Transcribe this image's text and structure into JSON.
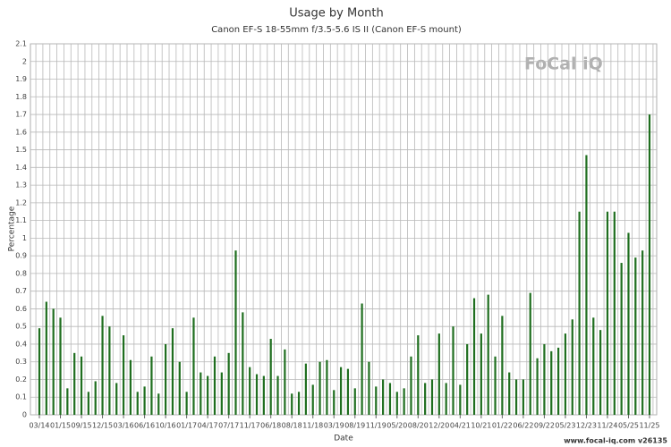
{
  "chart_data": {
    "type": "bar",
    "title": "Usage by Month",
    "subtitle": "Canon EF-S 18-55mm f/3.5-5.6 IS II (Canon EF-S mount)",
    "xlabel": "Date",
    "ylabel": "Percentage",
    "color": "#1f6e1f",
    "grid": true,
    "logo": "FoCal iQ",
    "footer": "www.focal-iq.com  v26135",
    "categories": [
      "03/14",
      null,
      null,
      "01/15",
      null,
      null,
      "09/15",
      null,
      null,
      "12/15",
      null,
      null,
      "03/16",
      null,
      null,
      "06/16",
      null,
      null,
      "10/16",
      null,
      null,
      "01/17",
      null,
      null,
      "04/17",
      null,
      null,
      "07/17",
      null,
      null,
      "11/17",
      null,
      null,
      "06/18",
      null,
      null,
      "08/18",
      null,
      null,
      "11/18",
      null,
      null,
      "03/19",
      null,
      null,
      "08/19",
      null,
      null,
      "11/19",
      null,
      null,
      "05/20",
      null,
      null,
      "08/20",
      null,
      null,
      "12/20",
      null,
      null,
      "04/21",
      null,
      null,
      "10/21",
      null,
      null,
      "01/22",
      null,
      null,
      "06/22",
      null,
      null,
      "09/22",
      null,
      null,
      "05/23",
      null,
      null,
      "12/23",
      null,
      null,
      "11/24",
      null,
      null,
      "05/25",
      null,
      null,
      "11/25"
    ],
    "values": [
      0.49,
      0.64,
      0.6,
      0.55,
      0.15,
      0.35,
      0.33,
      0.13,
      0.19,
      0.56,
      0.5,
      0.18,
      0.45,
      0.31,
      0.13,
      0.16,
      0.33,
      0.12,
      0.4,
      0.49,
      0.3,
      0.13,
      0.55,
      0.24,
      0.22,
      0.33,
      0.24,
      0.35,
      0.93,
      0.58,
      0.27,
      0.23,
      0.22,
      0.43,
      0.22,
      0.37,
      0.12,
      0.13,
      0.29,
      0.17,
      0.3,
      0.31,
      0.14,
      0.27,
      0.26,
      0.15,
      0.63,
      0.3,
      0.16,
      0.2,
      0.18,
      0.13,
      0.15,
      0.33,
      0.45,
      0.18,
      0.2,
      0.46,
      0.18,
      0.5,
      0.17,
      0.4,
      0.66,
      0.46,
      0.68,
      0.33,
      0.56,
      0.24,
      0.2,
      0.2,
      0.69,
      0.32,
      0.4,
      0.36,
      0.38,
      0.46,
      0.54,
      1.15,
      1.47,
      0.55,
      0.48,
      1.15,
      1.15,
      0.86,
      1.03,
      0.89,
      0.93,
      1.7
    ],
    "ylim": [
      0,
      2.1
    ],
    "yticks": [
      0,
      0.1,
      0.2,
      0.3,
      0.4,
      0.5,
      0.6,
      0.7,
      0.8,
      0.9,
      1,
      1.1,
      1.2,
      1.3,
      1.4,
      1.5,
      1.6,
      1.7,
      1.8,
      1.9,
      2,
      2.1
    ]
  }
}
